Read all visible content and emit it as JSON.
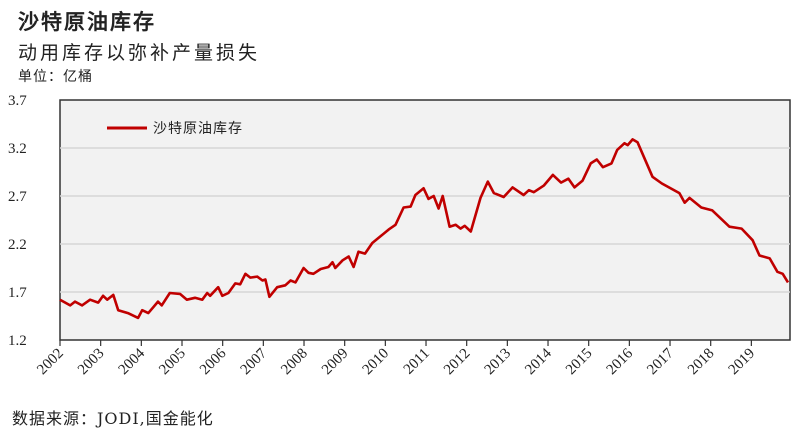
{
  "header": {
    "title": "沙特原油库存",
    "subtitle": "动用库存以弥补产量损失",
    "unit": "单位：亿桶"
  },
  "source": "数据来源：JODI,国金能化",
  "chart_data": {
    "type": "line",
    "title": "沙特原油库存",
    "ylabel": "单位：亿桶",
    "ylim": [
      1.2,
      3.7
    ],
    "yticks": [
      "1.2",
      "1.7",
      "2.2",
      "2.7",
      "3.2",
      "3.7"
    ],
    "xlim": [
      2002,
      2019.95
    ],
    "xticks": [
      "2002",
      "2003",
      "2004",
      "2005",
      "2006",
      "2007",
      "2008",
      "2009",
      "2010",
      "2011",
      "2012",
      "2013",
      "2014",
      "2015",
      "2016",
      "2017",
      "2018",
      "2019"
    ],
    "grid": "horizontal",
    "legend": "top-left",
    "series": [
      {
        "name": "沙特原油库存",
        "color": "#c00000",
        "points": [
          [
            2002.0,
            1.62
          ],
          [
            2002.25,
            1.56
          ],
          [
            2002.37,
            1.6
          ],
          [
            2002.54,
            1.56
          ],
          [
            2002.74,
            1.62
          ],
          [
            2002.94,
            1.59
          ],
          [
            2003.06,
            1.66
          ],
          [
            2003.16,
            1.62
          ],
          [
            2003.31,
            1.67
          ],
          [
            2003.43,
            1.51
          ],
          [
            2003.67,
            1.48
          ],
          [
            2003.92,
            1.43
          ],
          [
            2004.02,
            1.51
          ],
          [
            2004.17,
            1.48
          ],
          [
            2004.29,
            1.54
          ],
          [
            2004.41,
            1.6
          ],
          [
            2004.5,
            1.56
          ],
          [
            2004.7,
            1.69
          ],
          [
            2004.95,
            1.68
          ],
          [
            2005.12,
            1.62
          ],
          [
            2005.32,
            1.64
          ],
          [
            2005.5,
            1.62
          ],
          [
            2005.62,
            1.69
          ],
          [
            2005.69,
            1.66
          ],
          [
            2005.89,
            1.75
          ],
          [
            2005.99,
            1.66
          ],
          [
            2006.14,
            1.69
          ],
          [
            2006.31,
            1.79
          ],
          [
            2006.43,
            1.78
          ],
          [
            2006.56,
            1.89
          ],
          [
            2006.68,
            1.85
          ],
          [
            2006.85,
            1.86
          ],
          [
            2006.98,
            1.82
          ],
          [
            2007.05,
            1.83
          ],
          [
            2007.15,
            1.65
          ],
          [
            2007.34,
            1.75
          ],
          [
            2007.54,
            1.77
          ],
          [
            2007.67,
            1.82
          ],
          [
            2007.79,
            1.8
          ],
          [
            2007.99,
            1.95
          ],
          [
            2008.11,
            1.9
          ],
          [
            2008.23,
            1.89
          ],
          [
            2008.41,
            1.94
          ],
          [
            2008.6,
            1.96
          ],
          [
            2008.7,
            2.01
          ],
          [
            2008.77,
            1.95
          ],
          [
            2008.95,
            2.03
          ],
          [
            2009.1,
            2.07
          ],
          [
            2009.22,
            1.96
          ],
          [
            2009.34,
            2.12
          ],
          [
            2009.5,
            2.1
          ],
          [
            2009.68,
            2.21
          ],
          [
            2009.88,
            2.28
          ],
          [
            2010.08,
            2.35
          ],
          [
            2010.25,
            2.4
          ],
          [
            2010.45,
            2.58
          ],
          [
            2010.62,
            2.59
          ],
          [
            2010.74,
            2.71
          ],
          [
            2010.94,
            2.78
          ],
          [
            2011.06,
            2.67
          ],
          [
            2011.19,
            2.7
          ],
          [
            2011.31,
            2.57
          ],
          [
            2011.41,
            2.7
          ],
          [
            2011.58,
            2.38
          ],
          [
            2011.73,
            2.4
          ],
          [
            2011.85,
            2.36
          ],
          [
            2011.95,
            2.39
          ],
          [
            2012.1,
            2.33
          ],
          [
            2012.34,
            2.68
          ],
          [
            2012.52,
            2.85
          ],
          [
            2012.67,
            2.73
          ],
          [
            2012.91,
            2.69
          ],
          [
            2013.13,
            2.79
          ],
          [
            2013.4,
            2.71
          ],
          [
            2013.53,
            2.76
          ],
          [
            2013.65,
            2.74
          ],
          [
            2013.9,
            2.81
          ],
          [
            2014.12,
            2.92
          ],
          [
            2014.32,
            2.84
          ],
          [
            2014.5,
            2.88
          ],
          [
            2014.65,
            2.79
          ],
          [
            2014.85,
            2.86
          ],
          [
            2015.05,
            3.04
          ],
          [
            2015.2,
            3.08
          ],
          [
            2015.35,
            3.0
          ],
          [
            2015.56,
            3.04
          ],
          [
            2015.7,
            3.18
          ],
          [
            2015.88,
            3.25
          ],
          [
            2015.96,
            3.23
          ],
          [
            2016.08,
            3.29
          ],
          [
            2016.2,
            3.26
          ],
          [
            2016.57,
            2.9
          ],
          [
            2016.8,
            2.83
          ],
          [
            2017.23,
            2.73
          ],
          [
            2017.36,
            2.63
          ],
          [
            2017.48,
            2.68
          ],
          [
            2017.77,
            2.58
          ],
          [
            2018.04,
            2.55
          ],
          [
            2018.46,
            2.38
          ],
          [
            2018.76,
            2.36
          ],
          [
            2019.03,
            2.24
          ],
          [
            2019.2,
            2.08
          ],
          [
            2019.45,
            2.05
          ],
          [
            2019.64,
            1.91
          ],
          [
            2019.77,
            1.89
          ],
          [
            2019.9,
            1.8
          ]
        ]
      }
    ]
  }
}
